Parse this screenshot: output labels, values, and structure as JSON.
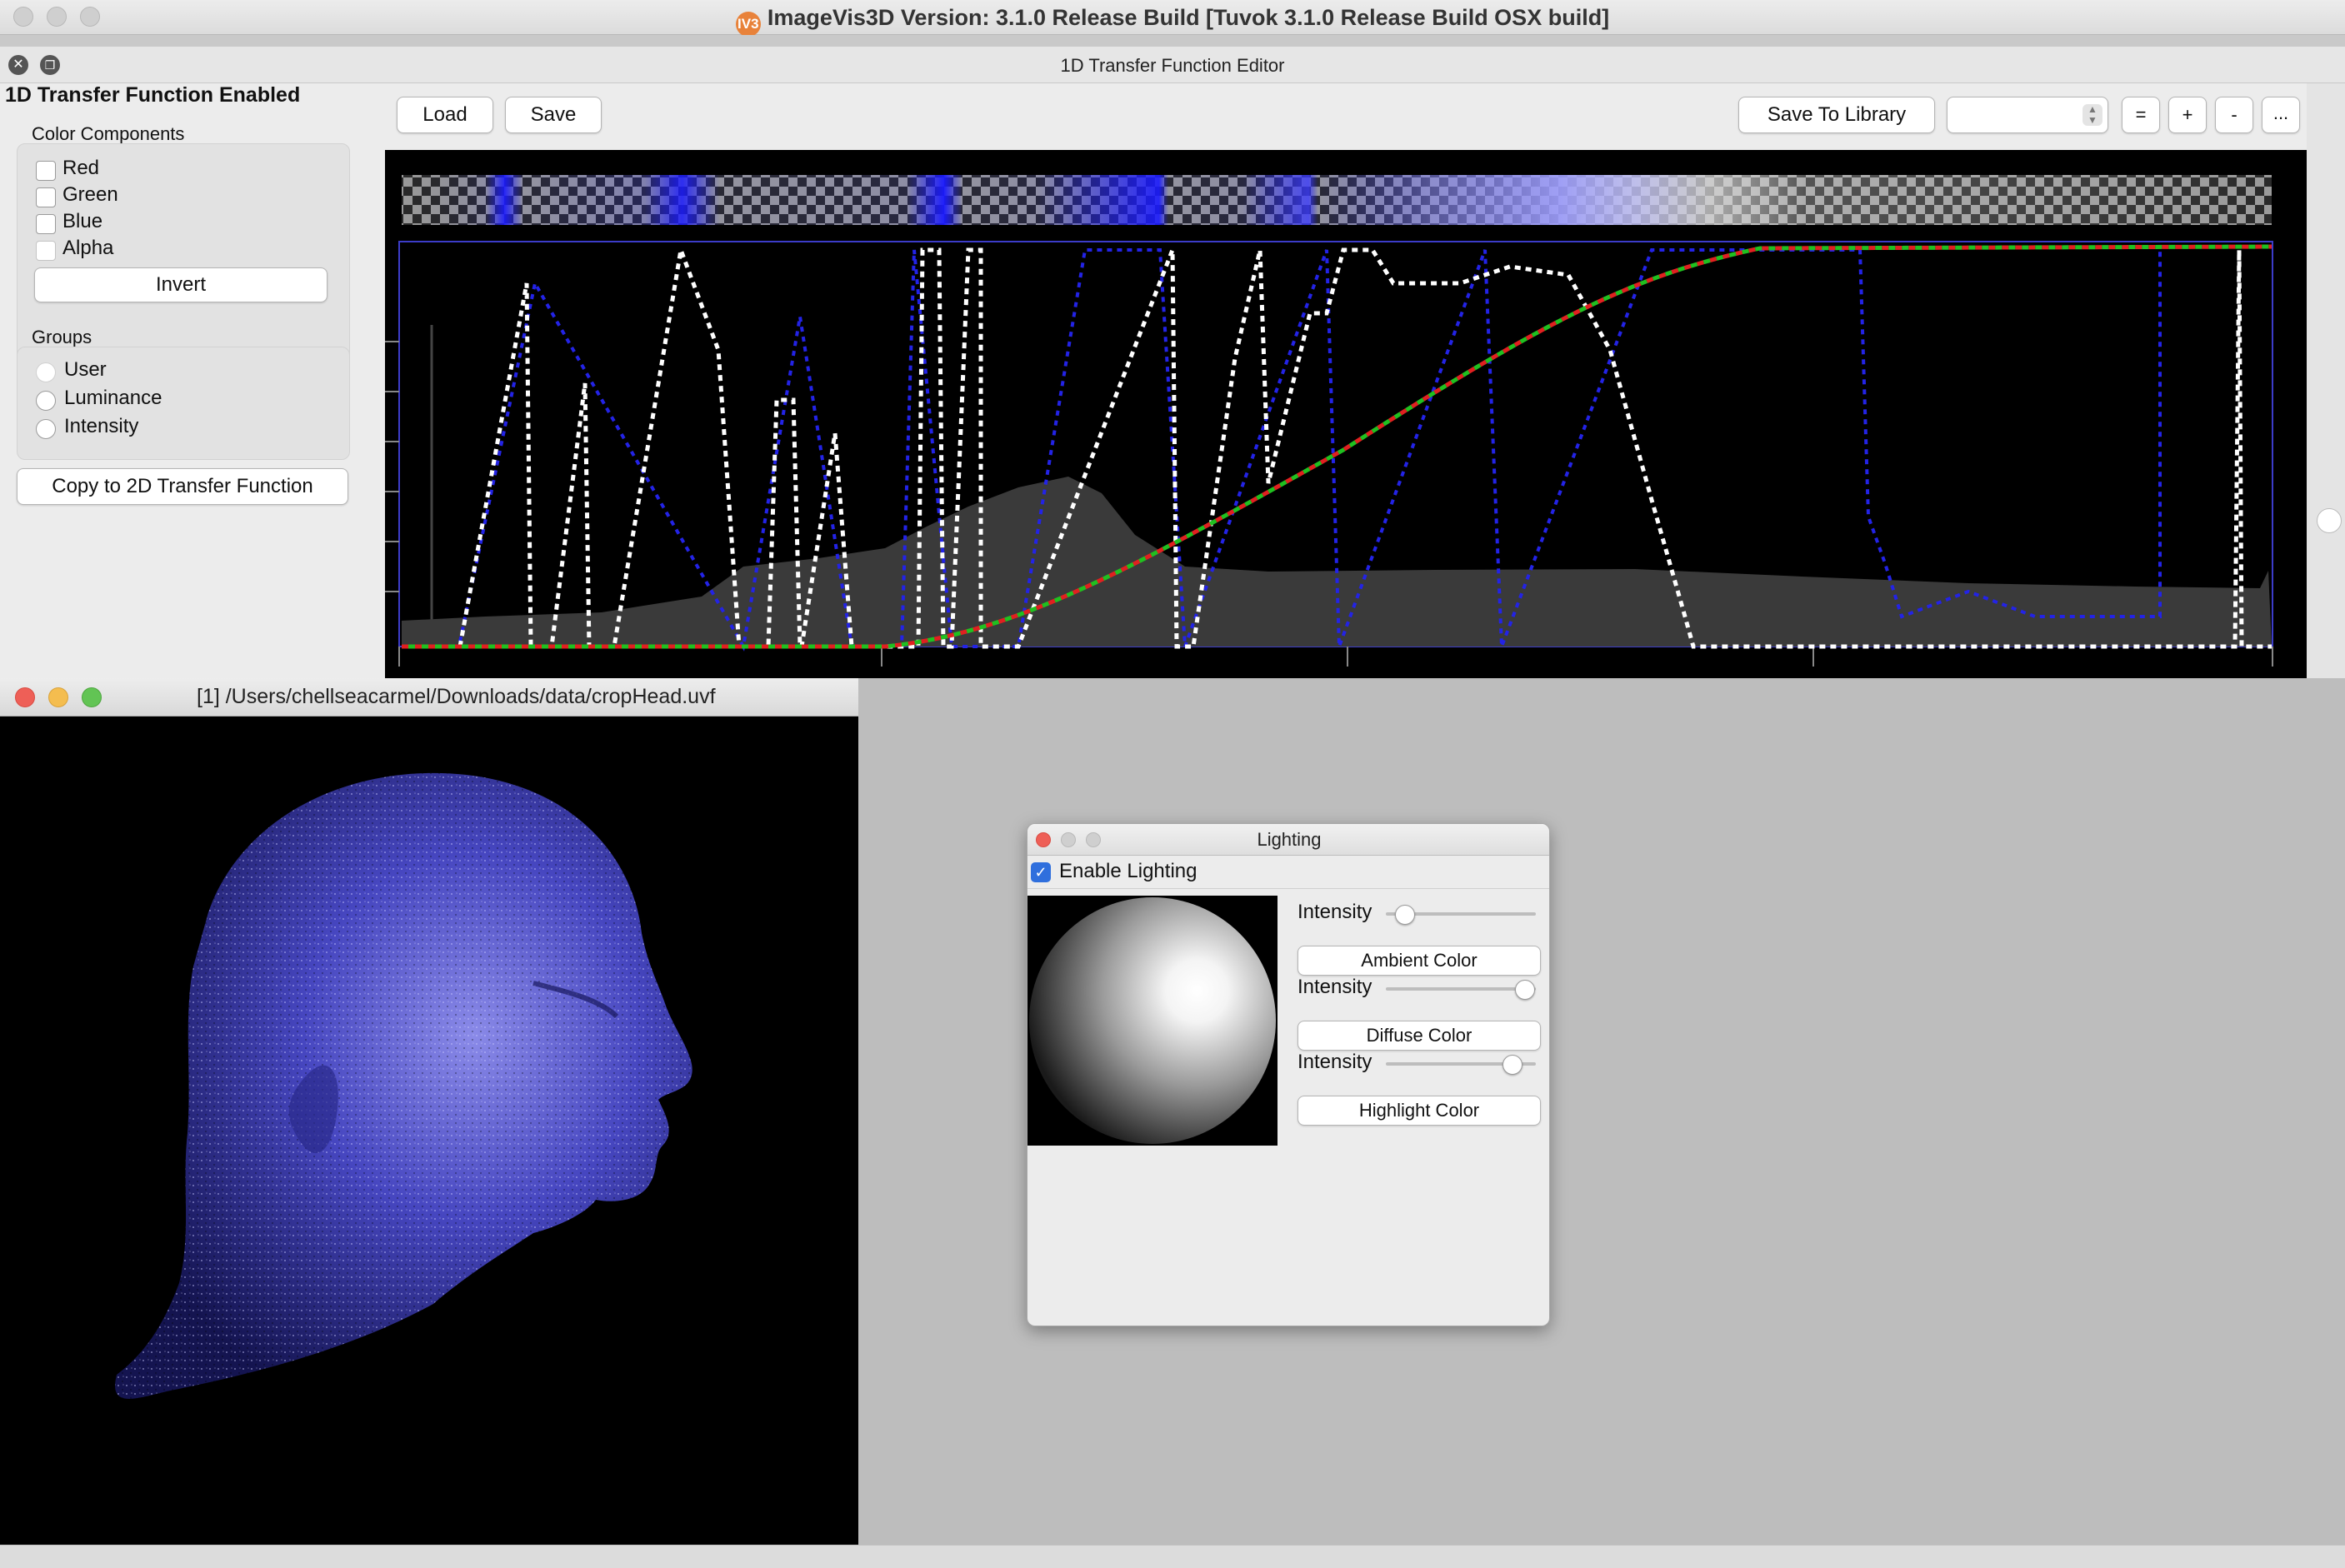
{
  "app": {
    "window_title": "ImageVis3D Version: 3.1.0 Release Build [Tuvok 3.1.0 Release Build OSX build]",
    "logo_text": "IV3"
  },
  "editor": {
    "dock_title": "1D Transfer Function Editor",
    "toolbar": {
      "load_label": "Load",
      "save_label": "Save",
      "save_to_library_label": "Save To Library",
      "library_select_value": "",
      "equals_label": "=",
      "plus_label": "+",
      "minus_label": "-",
      "more_label": "..."
    }
  },
  "left_panel": {
    "heading": "1D Transfer Function Enabled",
    "color_components": {
      "title": "Color Components",
      "items": [
        {
          "label": "Red",
          "checked": false
        },
        {
          "label": "Green",
          "checked": false
        },
        {
          "label": "Blue",
          "checked": false
        },
        {
          "label": "Alpha",
          "checked": false
        }
      ],
      "invert_label": "Invert"
    },
    "groups": {
      "title": "Groups",
      "items": [
        {
          "label": "User",
          "selected": true
        },
        {
          "label": "Luminance",
          "selected": false
        },
        {
          "label": "Intensity",
          "selected": false
        }
      ]
    },
    "copy_2d_label": "Copy to 2D Transfer Function"
  },
  "volume_window": {
    "title": "[1] /Users/chellseacarmel/Downloads/data/cropHead.uvf"
  },
  "lighting": {
    "title": "Lighting",
    "enable_label": "Enable Lighting",
    "enabled": true,
    "ambient": {
      "intensity_label": "Intensity",
      "value": 0.12,
      "button_label": "Ambient Color"
    },
    "diffuse": {
      "intensity_label": "Intensity",
      "value": 0.92,
      "button_label": "Diffuse Color"
    },
    "specular": {
      "intensity_label": "Intensity",
      "value": 0.84,
      "button_label": "Highlight Color"
    }
  },
  "colors": {
    "accent_blue": "#2f6fdd",
    "close_red": "#ee5f57",
    "minimize_yellow": "#f4bd4f",
    "zoom_green": "#62c454",
    "head_blue": "#3a3ab0"
  }
}
